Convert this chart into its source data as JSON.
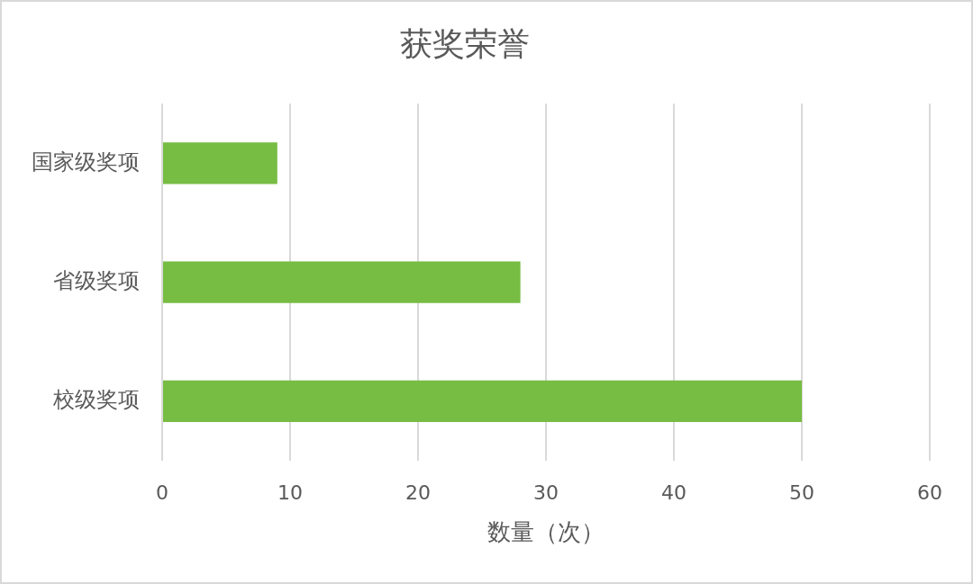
{
  "chart_data": {
    "type": "bar",
    "orientation": "horizontal",
    "title": "获奖荣誉",
    "xlabel": "数量（次）",
    "categories": [
      "国家级奖项",
      "省级奖项",
      "校级奖项"
    ],
    "values": [
      9,
      28,
      50
    ],
    "color": "#77bc43",
    "xlim": [
      0,
      60
    ],
    "xticks": [
      0,
      10,
      20,
      30,
      40,
      50,
      60
    ],
    "grid": "x"
  }
}
